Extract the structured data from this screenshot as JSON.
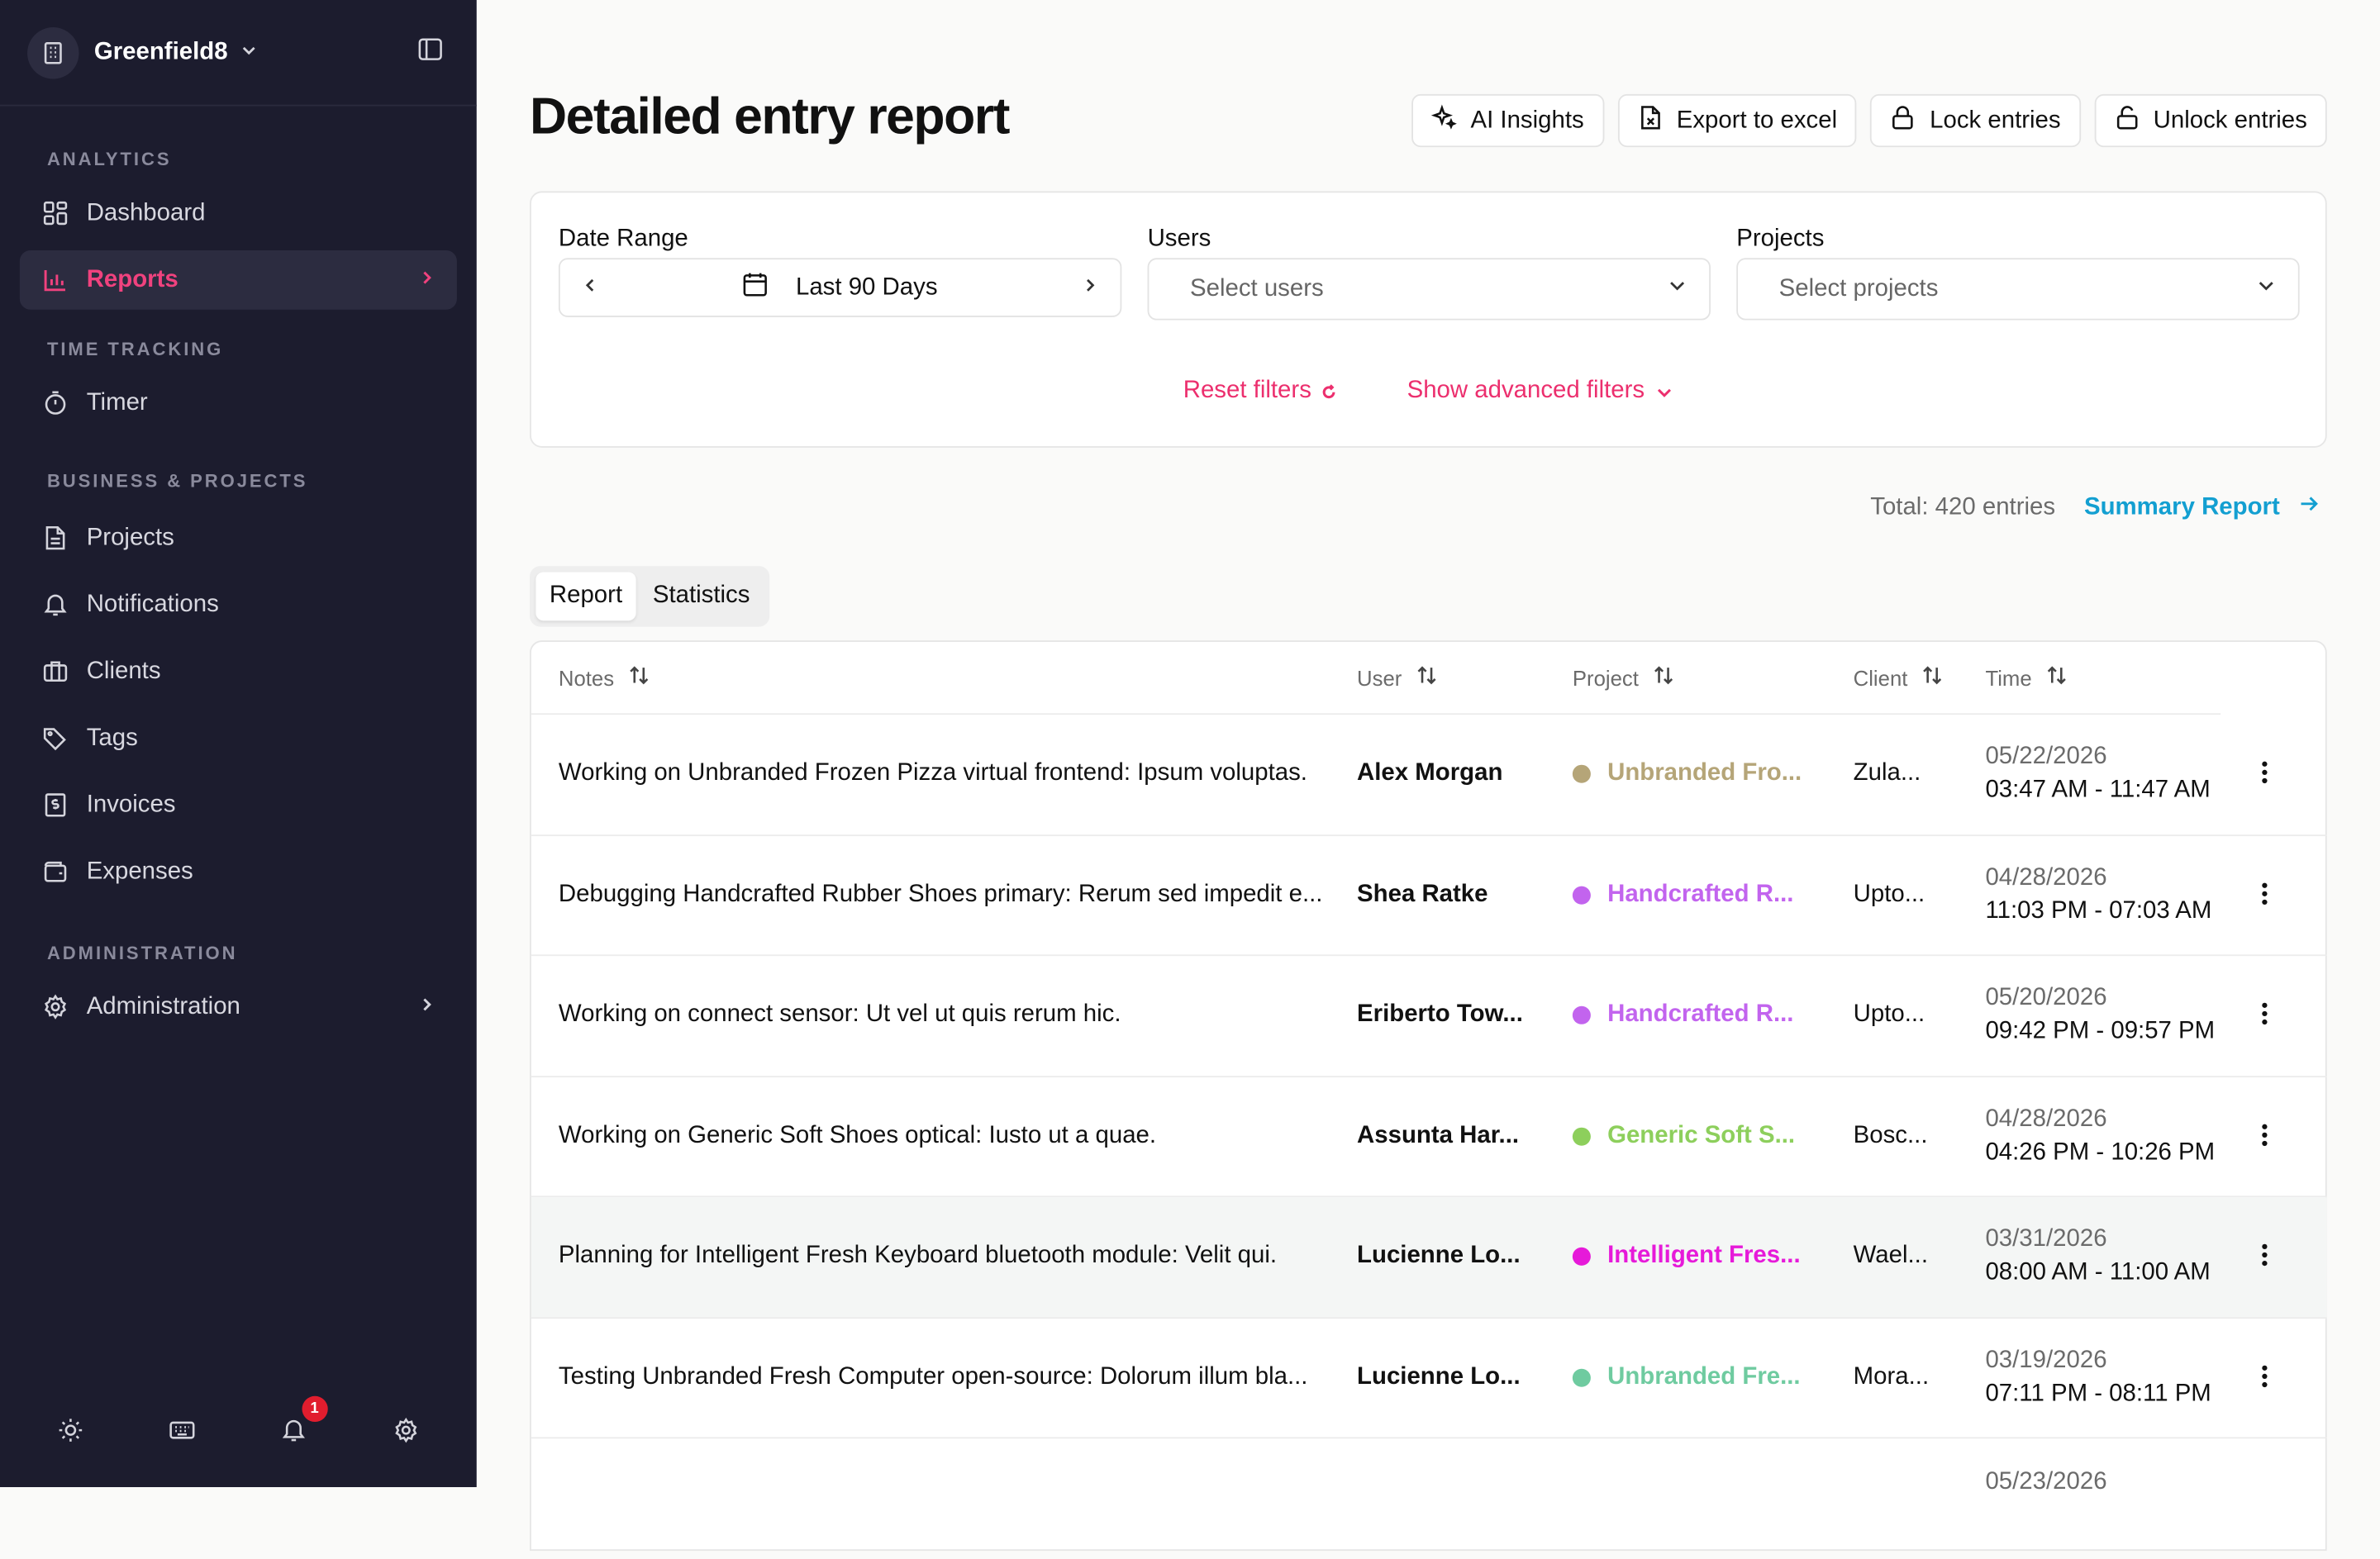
{
  "workspace": {
    "name": "Greenfield8"
  },
  "sidebar": {
    "sections": [
      {
        "title": "ANALYTICS"
      },
      {
        "title": "TIME TRACKING"
      },
      {
        "title": "BUSINESS & PROJECTS"
      },
      {
        "title": "ADMINISTRATION"
      }
    ],
    "items": {
      "dashboard": "Dashboard",
      "reports": "Reports",
      "timer": "Timer",
      "projects": "Projects",
      "notifications": "Notifications",
      "clients": "Clients",
      "tags": "Tags",
      "invoices": "Invoices",
      "expenses": "Expenses",
      "administration": "Administration"
    },
    "notification_count": "1"
  },
  "page": {
    "title": "Detailed entry report",
    "actions": {
      "ai": "AI Insights",
      "export": "Export to excel",
      "lock": "Lock entries",
      "unlock": "Unlock entries"
    }
  },
  "filters": {
    "date_label": "Date Range",
    "date_value": "Last 90 Days",
    "users_label": "Users",
    "users_placeholder": "Select users",
    "projects_label": "Projects",
    "projects_placeholder": "Select projects",
    "reset": "Reset filters",
    "advanced": "Show advanced filters"
  },
  "summary": {
    "total": "Total: 420 entries",
    "summary_link": "Summary Report"
  },
  "tabs": {
    "report": "Report",
    "statistics": "Statistics"
  },
  "table": {
    "headers": {
      "notes": "Notes",
      "user": "User",
      "project": "Project",
      "client": "Client",
      "time": "Time"
    },
    "rows": [
      {
        "notes": "Working on Unbranded Frozen Pizza virtual frontend: Ipsum voluptas.",
        "user": "Alex Morgan",
        "project": "Unbranded Fro...",
        "project_color": "#b5a578",
        "client": "Zula...",
        "date": "05/22/2026",
        "time": "03:47 AM - 11:47 AM"
      },
      {
        "notes": "Debugging Handcrafted Rubber Shoes primary: Rerum sed impedit e...",
        "user": "Shea Ratke",
        "project": "Handcrafted R...",
        "project_color": "#c264ee",
        "client": "Upto...",
        "date": "04/28/2026",
        "time": "11:03 PM - 07:03 AM"
      },
      {
        "notes": "Working on connect sensor: Ut vel ut quis rerum hic.",
        "user": "Eriberto Tow...",
        "project": "Handcrafted R...",
        "project_color": "#c264ee",
        "client": "Upto...",
        "date": "05/20/2026",
        "time": "09:42 PM - 09:57 PM"
      },
      {
        "notes": "Working on Generic Soft Shoes optical: Iusto ut a quae.",
        "user": "Assunta Har...",
        "project": "Generic Soft S...",
        "project_color": "#8dcf5c",
        "client": "Bosc...",
        "date": "04/28/2026",
        "time": "04:26 PM - 10:26 PM"
      },
      {
        "notes": "Planning for Intelligent Fresh Keyboard bluetooth module: Velit qui.",
        "user": "Lucienne Lo...",
        "project": "Intelligent Fres...",
        "project_color": "#e61ad9",
        "client": "Wael...",
        "date": "03/31/2026",
        "time": "08:00 AM - 11:00 AM"
      },
      {
        "notes": "Testing Unbranded Fresh Computer open-source: Dolorum illum bla...",
        "user": "Lucienne Lo...",
        "project": "Unbranded Fre...",
        "project_color": "#6fcba0",
        "client": "Mora...",
        "date": "03/19/2026",
        "time": "07:11 PM - 08:11 PM"
      },
      {
        "notes": "",
        "user": "",
        "project": "",
        "project_color": "#ffffff",
        "client": "",
        "date": "05/23/2026",
        "time": ""
      }
    ]
  }
}
